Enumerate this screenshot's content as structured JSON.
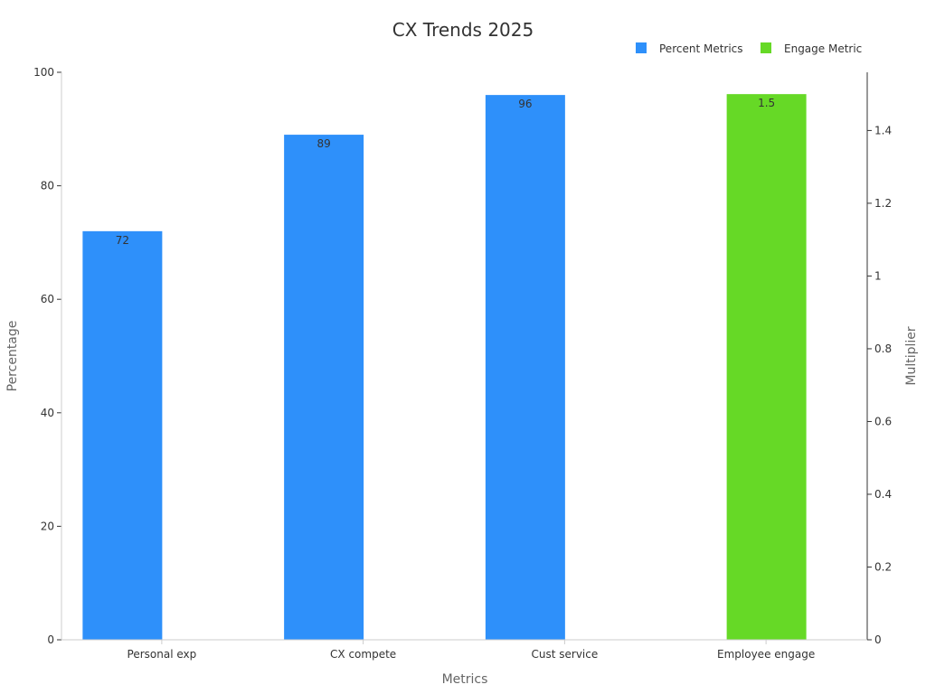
{
  "chart_data": {
    "type": "bar",
    "title": "CX Trends 2025",
    "xlabel": "Metrics",
    "ylabel": "Percentage",
    "y2label": "Multiplier",
    "categories": [
      "Personal exp",
      "CX compete",
      "Cust service",
      "Employee engage"
    ],
    "series": [
      {
        "name": "Percent Metrics",
        "axis": "left",
        "color": "#2e90fa",
        "values": [
          72,
          89,
          96,
          null
        ],
        "labels": [
          "72",
          "89",
          "96",
          null
        ]
      },
      {
        "name": "Engage Metric",
        "axis": "right",
        "color": "#66d926",
        "values": [
          null,
          null,
          null,
          1.5
        ],
        "labels": [
          null,
          null,
          null,
          "1.5"
        ]
      }
    ],
    "ylim": [
      0,
      100
    ],
    "yticks": [
      "0",
      "20",
      "40",
      "60",
      "80",
      "100"
    ],
    "y2lim": [
      0,
      1.56
    ],
    "y2ticks": [
      "0",
      "0.2",
      "0.4",
      "0.6",
      "0.8",
      "1",
      "1.2",
      "1.4"
    ],
    "grid": false,
    "legend": "top-right"
  }
}
